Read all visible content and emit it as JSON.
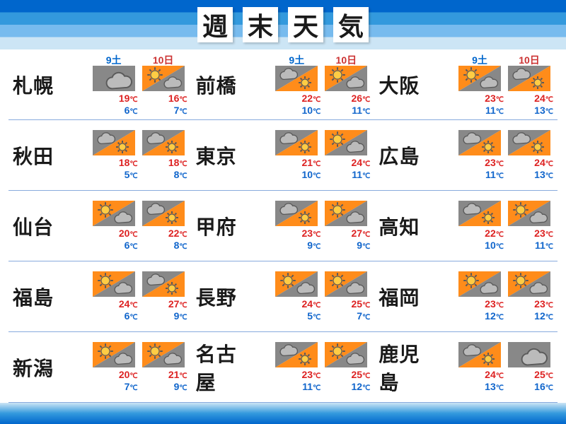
{
  "title_chars": [
    "週",
    "末",
    "天",
    "気"
  ],
  "date_labels": {
    "sat": "9土",
    "sun": "10日"
  },
  "colors": {
    "sat": "#0066cc",
    "sun": "#cc3333",
    "hi": "#dd2222",
    "lo": "#1166cc",
    "orange": "#ff8c1a",
    "gray": "#888888",
    "outline": "#5a5a5a"
  },
  "icons": {
    "cloudy": "cloud-full",
    "sunny_cloud": "sun-then-cloud",
    "cloud_sunny": "cloud-then-sun"
  },
  "columns": [
    [
      {
        "city": "札幌",
        "days": [
          {
            "icon": "cloudy",
            "hi": 19,
            "lo": 6
          },
          {
            "icon": "sunny_cloud",
            "hi": 16,
            "lo": 7
          }
        ]
      },
      {
        "city": "秋田",
        "days": [
          {
            "icon": "cloud_sunny",
            "hi": 18,
            "lo": 5
          },
          {
            "icon": "cloud_sunny",
            "hi": 18,
            "lo": 8
          }
        ]
      },
      {
        "city": "仙台",
        "days": [
          {
            "icon": "sunny_cloud",
            "hi": 20,
            "lo": 6
          },
          {
            "icon": "cloud_sunny",
            "hi": 22,
            "lo": 8
          }
        ]
      },
      {
        "city": "福島",
        "days": [
          {
            "icon": "sunny_cloud",
            "hi": 24,
            "lo": 6
          },
          {
            "icon": "cloud_sunny",
            "hi": 27,
            "lo": 9
          }
        ]
      },
      {
        "city": "新潟",
        "days": [
          {
            "icon": "sunny_cloud",
            "hi": 20,
            "lo": 7
          },
          {
            "icon": "sunny_cloud",
            "hi": 21,
            "lo": 9
          }
        ]
      }
    ],
    [
      {
        "city": "前橋",
        "days": [
          {
            "icon": "cloud_sunny",
            "hi": 22,
            "lo": 10
          },
          {
            "icon": "sunny_cloud",
            "hi": 26,
            "lo": 11
          }
        ]
      },
      {
        "city": "東京",
        "days": [
          {
            "icon": "cloud_sunny",
            "hi": 21,
            "lo": 10
          },
          {
            "icon": "sunny_cloud",
            "hi": 24,
            "lo": 11
          }
        ]
      },
      {
        "city": "甲府",
        "days": [
          {
            "icon": "cloud_sunny",
            "hi": 23,
            "lo": 9
          },
          {
            "icon": "sunny_cloud",
            "hi": 27,
            "lo": 9
          }
        ]
      },
      {
        "city": "長野",
        "days": [
          {
            "icon": "sunny_cloud",
            "hi": 24,
            "lo": 5
          },
          {
            "icon": "sunny_cloud",
            "hi": 25,
            "lo": 7
          }
        ]
      },
      {
        "city": "名古屋",
        "days": [
          {
            "icon": "cloud_sunny",
            "hi": 23,
            "lo": 11
          },
          {
            "icon": "sunny_cloud",
            "hi": 25,
            "lo": 12
          }
        ]
      }
    ],
    [
      {
        "city": "大阪",
        "days": [
          {
            "icon": "sunny_cloud",
            "hi": 23,
            "lo": 11
          },
          {
            "icon": "cloud_sunny",
            "hi": 24,
            "lo": 13
          }
        ]
      },
      {
        "city": "広島",
        "days": [
          {
            "icon": "cloud_sunny",
            "hi": 23,
            "lo": 11
          },
          {
            "icon": "cloud_sunny",
            "hi": 24,
            "lo": 13
          }
        ]
      },
      {
        "city": "高知",
        "days": [
          {
            "icon": "cloud_sunny",
            "hi": 22,
            "lo": 10
          },
          {
            "icon": "sunny_cloud",
            "hi": 23,
            "lo": 11
          }
        ]
      },
      {
        "city": "福岡",
        "days": [
          {
            "icon": "sunny_cloud",
            "hi": 23,
            "lo": 12
          },
          {
            "icon": "sunny_cloud",
            "hi": 23,
            "lo": 12
          }
        ]
      },
      {
        "city": "鹿児島",
        "days": [
          {
            "icon": "cloud_sunny",
            "hi": 24,
            "lo": 13
          },
          {
            "icon": "cloudy",
            "hi": 25,
            "lo": 16
          }
        ]
      }
    ]
  ]
}
